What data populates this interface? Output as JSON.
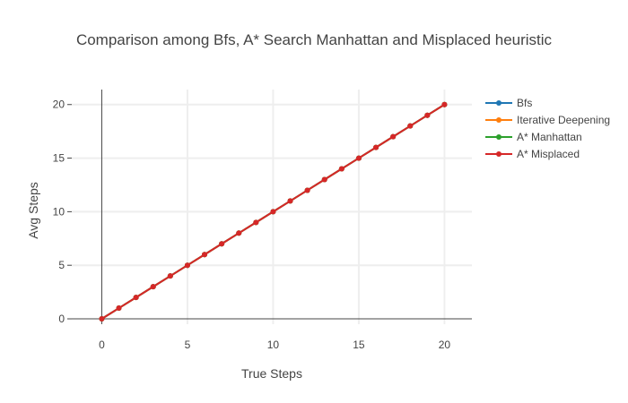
{
  "chart_data": {
    "type": "line",
    "title": "Comparison among Bfs, A* Search Manhattan and Misplaced heuristic",
    "xlabel": "True Steps",
    "ylabel": "Avg Steps",
    "x": [
      0,
      1,
      2,
      3,
      4,
      5,
      6,
      7,
      8,
      9,
      10,
      11,
      12,
      13,
      14,
      15,
      16,
      17,
      18,
      19,
      20
    ],
    "xlim": [
      -1.75,
      21.6
    ],
    "ylim": [
      -0.5,
      21.4
    ],
    "xticks": [
      0,
      5,
      10,
      15,
      20
    ],
    "yticks": [
      0,
      5,
      10,
      15,
      20
    ],
    "xtick_labels": [
      "0",
      "5",
      "10",
      "15",
      "20"
    ],
    "ytick_labels": [
      "0",
      "5",
      "10",
      "15",
      "20"
    ],
    "grid": true,
    "legend_position": "right",
    "series": [
      {
        "name": "Bfs",
        "color": "#1f77b4",
        "values": [
          0,
          1,
          2,
          3,
          4,
          5,
          6,
          7,
          8,
          9,
          10,
          11,
          12,
          13,
          14,
          15,
          16,
          17,
          18,
          19,
          20
        ]
      },
      {
        "name": "Iterative Deepening",
        "color": "#ff7f0e",
        "values": [
          0,
          1,
          2,
          3,
          4,
          5,
          6,
          7,
          8,
          9,
          10,
          11,
          12,
          13,
          14,
          15,
          16,
          17,
          18,
          19,
          20
        ]
      },
      {
        "name": "A* Manhattan",
        "color": "#2ca02c",
        "values": [
          0,
          1,
          2,
          3,
          4,
          5,
          6,
          7,
          8,
          9,
          10,
          11,
          12,
          13,
          14,
          15,
          16,
          17,
          18,
          19,
          20
        ]
      },
      {
        "name": "A* Misplaced",
        "color": "#d62728",
        "values": [
          0,
          1,
          2,
          3,
          4,
          5,
          6,
          7,
          8,
          9,
          10,
          11,
          12,
          13,
          14,
          15,
          16,
          17,
          18,
          19,
          20
        ]
      }
    ]
  }
}
